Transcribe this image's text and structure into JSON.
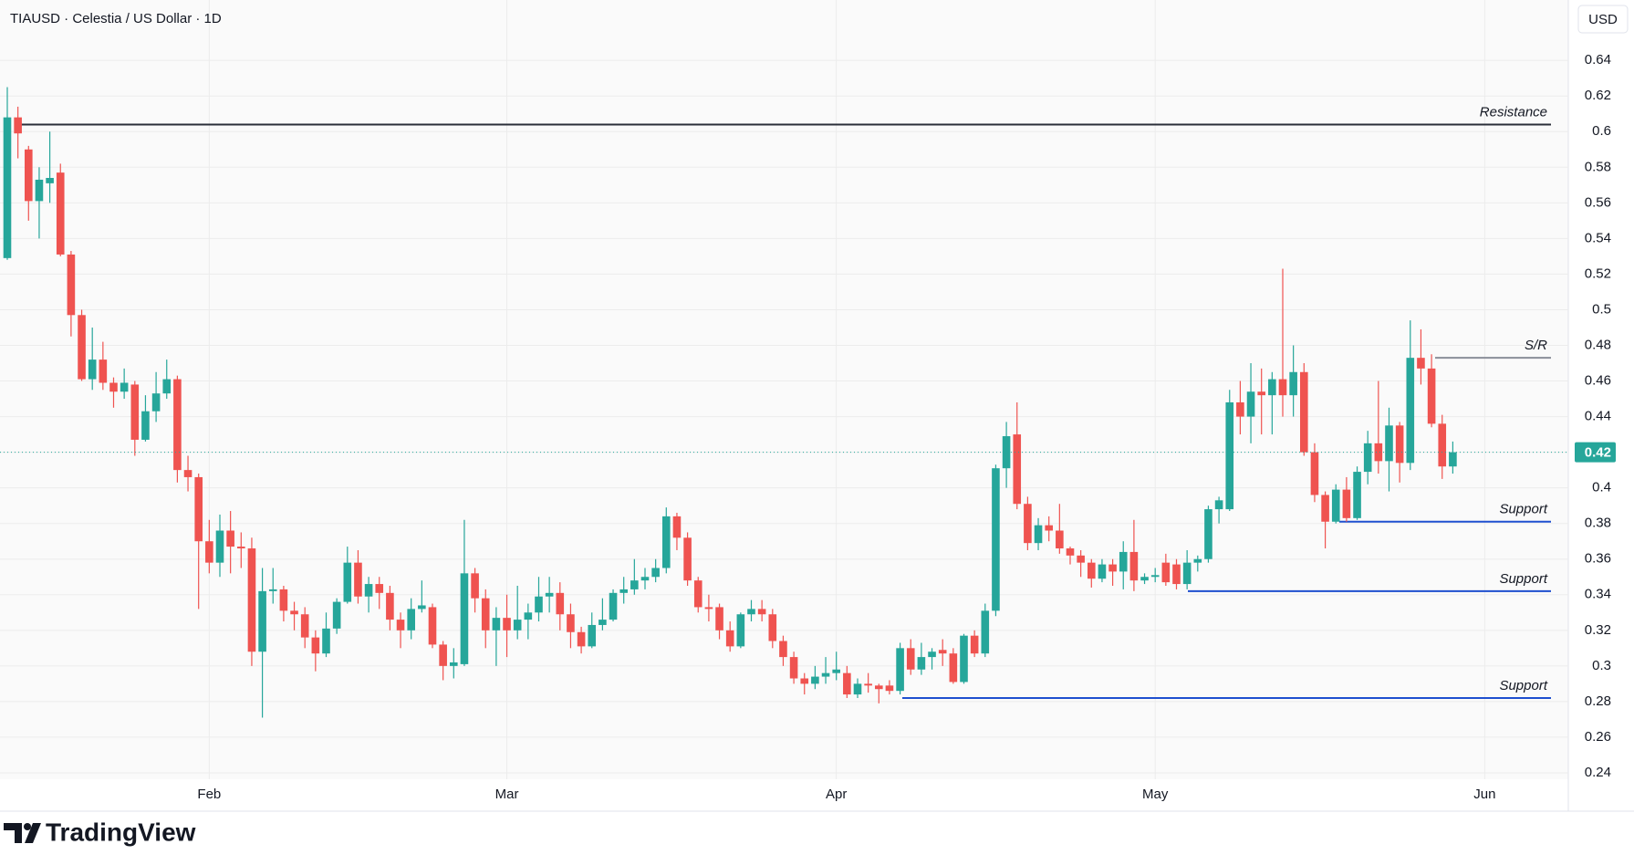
{
  "chart_data": {
    "type": "candlestick",
    "title": "TIAUSD · Celestia / US Dollar · 1D",
    "currency": "USD",
    "brand": "TradingView",
    "up_color": "#26a69a",
    "down_color": "#ef5350",
    "grid": true,
    "ylim": [
      0.2364,
      0.6739
    ],
    "yticks": [
      0.24,
      0.26,
      0.28,
      0.3,
      0.32,
      0.34,
      0.36,
      0.38,
      0.4,
      0.42,
      0.44,
      0.46,
      0.48,
      0.5,
      0.52,
      0.54,
      0.56,
      0.58,
      0.6,
      0.62,
      0.64
    ],
    "xticks": [
      {
        "value": 19,
        "label": "Feb"
      },
      {
        "value": 47,
        "label": "Mar"
      },
      {
        "value": 78,
        "label": "Apr"
      },
      {
        "value": 108,
        "label": "May"
      },
      {
        "value": 139,
        "label": "Jun"
      }
    ],
    "open": [
      0.529,
      0.608,
      0.59,
      0.561,
      0.571,
      0.577,
      0.531,
      0.497,
      0.461,
      0.472,
      0.459,
      0.454,
      0.458,
      0.427,
      0.443,
      0.453,
      0.461,
      0.41,
      0.406,
      0.37,
      0.358,
      0.376,
      0.367,
      0.366,
      0.308,
      0.342,
      0.343,
      0.331,
      0.329,
      0.316,
      0.307,
      0.321,
      0.336,
      0.358,
      0.339,
      0.346,
      0.341,
      0.326,
      0.32,
      0.332,
      0.333,
      0.312,
      0.3,
      0.301,
      0.352,
      0.338,
      0.32,
      0.327,
      0.32,
      0.326,
      0.33,
      0.339,
      0.341,
      0.329,
      0.319,
      0.311,
      0.323,
      0.326,
      0.341,
      0.343,
      0.348,
      0.35,
      0.355,
      0.384,
      0.372,
      0.348,
      0.333,
      0.333,
      0.32,
      0.311,
      0.329,
      0.332,
      0.329,
      0.314,
      0.305,
      0.293,
      0.29,
      0.294,
      0.296,
      0.296,
      0.284,
      0.29,
      0.289,
      0.289,
      0.286,
      0.31,
      0.298,
      0.305,
      0.309,
      0.307,
      0.291,
      0.317,
      0.307,
      0.331,
      0.411,
      0.43,
      0.391,
      0.369,
      0.379,
      0.376,
      0.366,
      0.362,
      0.358,
      0.349,
      0.357,
      0.353,
      0.364,
      0.348,
      0.35,
      0.358,
      0.357,
      0.346,
      0.358,
      0.36,
      0.388,
      0.388,
      0.448,
      0.44,
      0.454,
      0.452,
      0.461,
      0.452,
      0.465,
      0.42,
      0.396,
      0.381,
      0.399,
      0.383,
      0.409,
      0.425,
      0.415,
      0.435,
      0.414,
      0.473,
      0.467,
      0.436,
      0.412
    ],
    "high": [
      0.625,
      0.614,
      0.592,
      0.58,
      0.6,
      0.582,
      0.533,
      0.5,
      0.49,
      0.482,
      0.462,
      0.467,
      0.46,
      0.452,
      0.465,
      0.472,
      0.463,
      0.418,
      0.408,
      0.382,
      0.385,
      0.387,
      0.375,
      0.372,
      0.355,
      0.355,
      0.345,
      0.336,
      0.333,
      0.32,
      0.33,
      0.338,
      0.367,
      0.365,
      0.35,
      0.35,
      0.345,
      0.33,
      0.338,
      0.348,
      0.335,
      0.314,
      0.31,
      0.382,
      0.355,
      0.343,
      0.333,
      0.34,
      0.345,
      0.335,
      0.35,
      0.35,
      0.347,
      0.335,
      0.322,
      0.33,
      0.338,
      0.343,
      0.35,
      0.36,
      0.355,
      0.36,
      0.389,
      0.386,
      0.375,
      0.35,
      0.34,
      0.335,
      0.325,
      0.33,
      0.337,
      0.337,
      0.332,
      0.317,
      0.308,
      0.296,
      0.3,
      0.305,
      0.308,
      0.3,
      0.293,
      0.296,
      0.29,
      0.292,
      0.313,
      0.315,
      0.313,
      0.31,
      0.315,
      0.31,
      0.318,
      0.32,
      0.335,
      0.413,
      0.437,
      0.448,
      0.395,
      0.383,
      0.384,
      0.391,
      0.367,
      0.365,
      0.36,
      0.36,
      0.36,
      0.37,
      0.382,
      0.352,
      0.355,
      0.363,
      0.36,
      0.365,
      0.362,
      0.39,
      0.395,
      0.455,
      0.46,
      0.47,
      0.467,
      0.465,
      0.523,
      0.48,
      0.47,
      0.425,
      0.398,
      0.402,
      0.406,
      0.412,
      0.432,
      0.46,
      0.445,
      0.437,
      0.494,
      0.489,
      0.475,
      0.441,
      0.426
    ],
    "low": [
      0.528,
      0.585,
      0.55,
      0.54,
      0.56,
      0.53,
      0.485,
      0.46,
      0.455,
      0.455,
      0.445,
      0.45,
      0.418,
      0.426,
      0.437,
      0.45,
      0.403,
      0.398,
      0.332,
      0.352,
      0.35,
      0.352,
      0.355,
      0.3,
      0.271,
      0.335,
      0.325,
      0.32,
      0.31,
      0.297,
      0.305,
      0.318,
      0.335,
      0.335,
      0.33,
      0.332,
      0.32,
      0.31,
      0.315,
      0.33,
      0.31,
      0.292,
      0.293,
      0.3,
      0.33,
      0.31,
      0.3,
      0.305,
      0.315,
      0.315,
      0.325,
      0.33,
      0.32,
      0.31,
      0.307,
      0.31,
      0.32,
      0.325,
      0.335,
      0.34,
      0.343,
      0.347,
      0.352,
      0.365,
      0.345,
      0.33,
      0.325,
      0.315,
      0.308,
      0.31,
      0.325,
      0.325,
      0.31,
      0.3,
      0.29,
      0.284,
      0.287,
      0.29,
      0.292,
      0.282,
      0.282,
      0.285,
      0.279,
      0.284,
      0.284,
      0.295,
      0.295,
      0.298,
      0.3,
      0.29,
      0.29,
      0.305,
      0.305,
      0.328,
      0.4,
      0.388,
      0.365,
      0.365,
      0.37,
      0.363,
      0.357,
      0.35,
      0.344,
      0.347,
      0.345,
      0.343,
      0.342,
      0.346,
      0.347,
      0.345,
      0.343,
      0.343,
      0.353,
      0.358,
      0.38,
      0.387,
      0.43,
      0.425,
      0.43,
      0.43,
      0.44,
      0.44,
      0.418,
      0.392,
      0.366,
      0.38,
      0.381,
      0.382,
      0.402,
      0.408,
      0.398,
      0.403,
      0.41,
      0.458,
      0.434,
      0.405,
      0.408
    ],
    "close": [
      0.608,
      0.599,
      0.561,
      0.573,
      0.574,
      0.531,
      0.497,
      0.461,
      0.472,
      0.459,
      0.454,
      0.459,
      0.427,
      0.443,
      0.453,
      0.461,
      0.41,
      0.406,
      0.37,
      0.358,
      0.376,
      0.367,
      0.366,
      0.308,
      0.342,
      0.343,
      0.331,
      0.329,
      0.316,
      0.307,
      0.321,
      0.336,
      0.358,
      0.339,
      0.346,
      0.341,
      0.326,
      0.32,
      0.332,
      0.334,
      0.312,
      0.3,
      0.302,
      0.352,
      0.338,
      0.32,
      0.327,
      0.32,
      0.326,
      0.33,
      0.339,
      0.341,
      0.329,
      0.319,
      0.311,
      0.323,
      0.326,
      0.341,
      0.343,
      0.348,
      0.35,
      0.355,
      0.384,
      0.372,
      0.348,
      0.333,
      0.332,
      0.32,
      0.311,
      0.329,
      0.332,
      0.329,
      0.314,
      0.305,
      0.293,
      0.29,
      0.294,
      0.296,
      0.298,
      0.284,
      0.29,
      0.289,
      0.287,
      0.286,
      0.31,
      0.298,
      0.305,
      0.308,
      0.307,
      0.291,
      0.317,
      0.307,
      0.331,
      0.411,
      0.429,
      0.391,
      0.369,
      0.379,
      0.376,
      0.366,
      0.362,
      0.358,
      0.349,
      0.357,
      0.353,
      0.364,
      0.348,
      0.35,
      0.351,
      0.347,
      0.346,
      0.358,
      0.36,
      0.388,
      0.393,
      0.448,
      0.44,
      0.454,
      0.452,
      0.461,
      0.452,
      0.465,
      0.42,
      0.396,
      0.381,
      0.399,
      0.383,
      0.409,
      0.425,
      0.415,
      0.435,
      0.414,
      0.473,
      0.467,
      0.436,
      0.412,
      0.42
    ],
    "levels": [
      {
        "label": "Resistance",
        "value": 0.604,
        "color": "#2a2e39"
      },
      {
        "label": "S/R",
        "value": 0.473,
        "color": "#8a8e99"
      },
      {
        "label": "Support",
        "value": 0.381,
        "color": "#1e4fcf"
      },
      {
        "label": "Support",
        "value": 0.342,
        "color": "#1e4fcf"
      },
      {
        "label": "Support",
        "value": 0.282,
        "color": "#1e4fcf"
      }
    ]
  }
}
